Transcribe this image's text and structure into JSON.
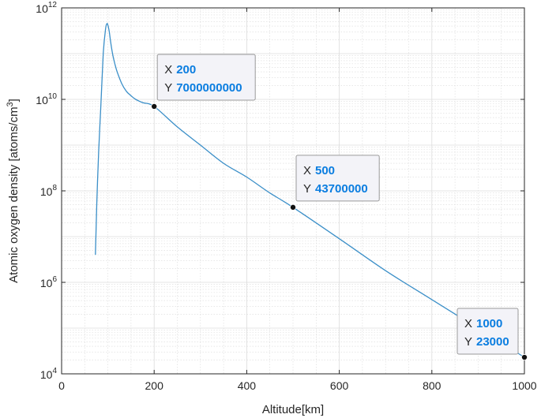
{
  "chart_data": {
    "type": "line",
    "title": "",
    "xlabel": "Altitude[km]",
    "ylabel": "Atomic oxygen density [atoms/cm",
    "ylabel_superscript": "3",
    "ylabel_suffix": "]",
    "xlim": [
      0,
      1000
    ],
    "ylim": [
      10000,
      1000000000000
    ],
    "yscale": "log",
    "grid": true,
    "minor_grid": true,
    "line_color": "#3b8fc8",
    "x_ticks": [
      0,
      200,
      400,
      600,
      800,
      1000
    ],
    "x_tick_labels": [
      "0",
      "200",
      "400",
      "600",
      "800",
      "1000"
    ],
    "y_ticks": [
      10000,
      1000000,
      100000000,
      10000000000,
      1000000000000
    ],
    "y_tick_labels": [
      {
        "base": "10",
        "exp": "4"
      },
      {
        "base": "10",
        "exp": "6"
      },
      {
        "base": "10",
        "exp": "8"
      },
      {
        "base": "10",
        "exp": "10"
      },
      {
        "base": "10",
        "exp": "12"
      }
    ],
    "series": [
      {
        "x": [
          73,
          76,
          80,
          85,
          90,
          95,
          98,
          100,
          103,
          106,
          110,
          115,
          120,
          130,
          140,
          150,
          160,
          175,
          200,
          250,
          300,
          350,
          400,
          450,
          500,
          600,
          700,
          800,
          900,
          1000
        ],
        "y": [
          4000000,
          50000000,
          700000000,
          8000000000,
          100000000000,
          350000000000,
          450000000000,
          420000000000,
          300000000000,
          180000000000,
          100000000000,
          60000000000,
          40000000000,
          22000000000,
          15000000000,
          12000000000,
          10000000000,
          8500000000,
          7000000000,
          2500000000,
          1000000000,
          400000000,
          200000000,
          90000000,
          43700000,
          9000000,
          1800000,
          420000,
          98000,
          23000
        ]
      }
    ],
    "annotations": [
      {
        "x": 200,
        "y": 7000000000,
        "x_label": "X",
        "x_text": "200",
        "y_label": "Y",
        "y_text": "7000000000"
      },
      {
        "x": 500,
        "y": 43700000,
        "x_label": "X",
        "x_text": "500",
        "y_label": "Y",
        "y_text": "43700000"
      },
      {
        "x": 1000,
        "y": 23000,
        "x_label": "X",
        "x_text": "1000",
        "y_label": "Y",
        "y_text": "23000"
      }
    ],
    "datatip_value_color": "#0a7de0"
  }
}
